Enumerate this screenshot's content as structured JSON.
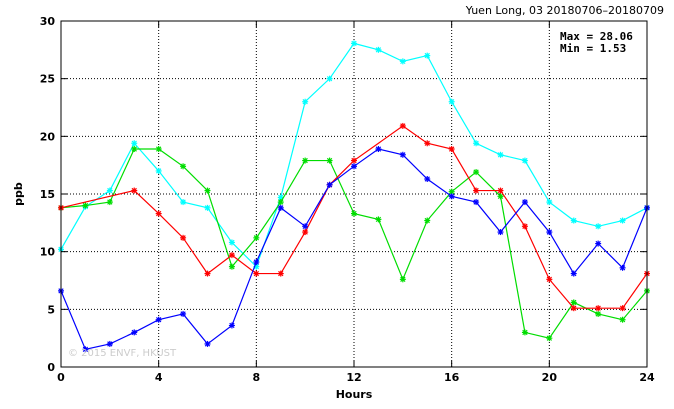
{
  "chart_data": {
    "type": "line",
    "title": "Yuen Long, 03 20180706–20180709",
    "xlabel": "Hours",
    "ylabel": "ppb",
    "xlim": [
      0,
      24
    ],
    "ylim": [
      0,
      30
    ],
    "x_ticks": [
      "0",
      "4",
      "8",
      "12",
      "16",
      "20",
      "24"
    ],
    "y_ticks": [
      "0",
      "5",
      "10",
      "15",
      "20",
      "25",
      "30"
    ],
    "grid": true,
    "legend": "none",
    "annotations": {
      "max": "Max = 28.06",
      "min": "Min =  1.53"
    },
    "watermark": "© 2015 ENVF, HKUST",
    "x": [
      0,
      1,
      2,
      3,
      4,
      5,
      6,
      7,
      8,
      9,
      10,
      11,
      12,
      13,
      14,
      15,
      16,
      17,
      18,
      19,
      20,
      21,
      22,
      23,
      24
    ],
    "series": [
      {
        "color": "#00ffff",
        "values": [
          10.2,
          13.9,
          15.3,
          19.4,
          17.0,
          14.3,
          13.8,
          10.8,
          8.7,
          14.7,
          23.0,
          25.0,
          28.06,
          27.5,
          26.5,
          27.0,
          23.0,
          19.4,
          18.4,
          17.9,
          14.3,
          12.7,
          12.2,
          12.7,
          13.8
        ]
      },
      {
        "color": "#00dd00",
        "values": [
          13.8,
          14.0,
          14.3,
          18.9,
          18.9,
          17.4,
          15.3,
          8.7,
          11.2,
          14.3,
          17.9,
          17.9,
          13.3,
          12.8,
          7.6,
          12.7,
          15.2,
          16.9,
          14.8,
          3.0,
          2.5,
          5.6,
          4.6,
          4.1,
          6.6
        ]
      },
      {
        "color": "#ff0000",
        "values": [
          13.8,
          null,
          null,
          15.3,
          13.3,
          11.2,
          8.1,
          9.7,
          8.1,
          8.1,
          11.7,
          15.8,
          17.9,
          null,
          20.9,
          19.4,
          18.9,
          15.3,
          15.3,
          12.2,
          7.6,
          5.1,
          5.1,
          5.1,
          8.1
        ]
      },
      {
        "color": "#0000ff",
        "values": [
          6.6,
          1.53,
          2.0,
          3.0,
          4.1,
          4.6,
          2.0,
          3.6,
          9.1,
          13.8,
          12.2,
          15.8,
          17.4,
          18.9,
          18.4,
          16.3,
          14.8,
          14.3,
          11.7,
          14.3,
          11.7,
          8.1,
          10.7,
          8.6,
          13.8
        ]
      }
    ]
  }
}
